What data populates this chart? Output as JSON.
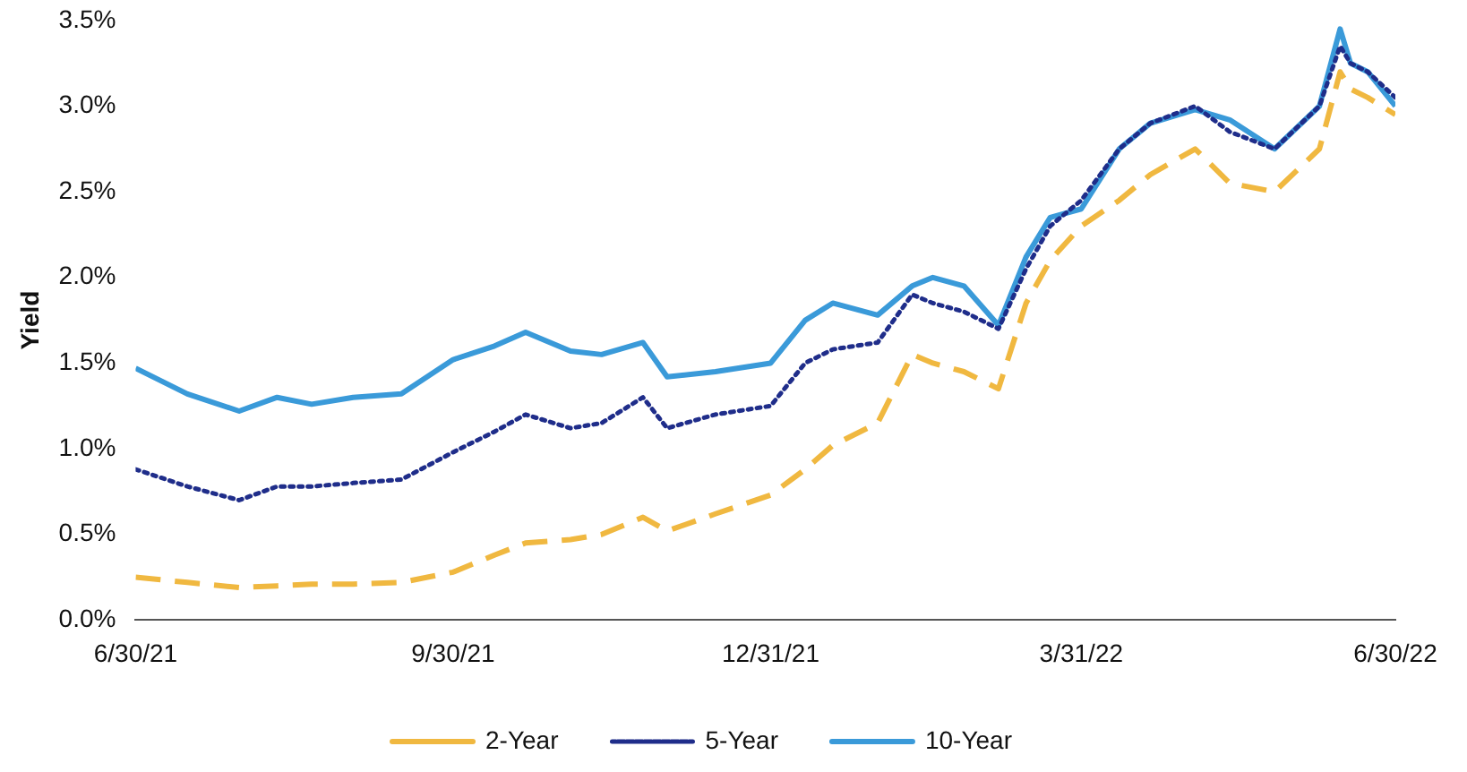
{
  "chart_data": {
    "type": "line",
    "ylabel": "Yield",
    "x": [
      "2021-06-30",
      "2021-07-15",
      "2021-07-30",
      "2021-08-10",
      "2021-08-20",
      "2021-09-01",
      "2021-09-15",
      "2021-09-30",
      "2021-10-12",
      "2021-10-21",
      "2021-11-03",
      "2021-11-12",
      "2021-11-24",
      "2021-12-01",
      "2021-12-15",
      "2021-12-31",
      "2022-01-10",
      "2022-01-18",
      "2022-01-31",
      "2022-02-10",
      "2022-02-16",
      "2022-02-25",
      "2022-03-07",
      "2022-03-15",
      "2022-03-22",
      "2022-03-31",
      "2022-04-11",
      "2022-04-20",
      "2022-05-03",
      "2022-05-13",
      "2022-05-26",
      "2022-06-08",
      "2022-06-14",
      "2022-06-17",
      "2022-06-22",
      "2022-06-30"
    ],
    "series": [
      {
        "name": "2-Year",
        "color": "#f0b840",
        "line_style": "dashed",
        "values": [
          0.25,
          0.22,
          0.19,
          0.2,
          0.21,
          0.21,
          0.22,
          0.28,
          0.38,
          0.45,
          0.47,
          0.5,
          0.6,
          0.52,
          0.62,
          0.73,
          0.88,
          1.02,
          1.15,
          1.55,
          1.5,
          1.45,
          1.35,
          1.85,
          2.1,
          2.3,
          2.45,
          2.6,
          2.75,
          2.55,
          2.5,
          2.75,
          3.2,
          3.1,
          3.05,
          2.95
        ]
      },
      {
        "name": "5-Year",
        "color": "#1f2d8a",
        "line_style": "dotted",
        "values": [
          0.88,
          0.78,
          0.7,
          0.78,
          0.78,
          0.8,
          0.82,
          0.98,
          1.1,
          1.2,
          1.12,
          1.15,
          1.3,
          1.12,
          1.2,
          1.25,
          1.5,
          1.58,
          1.62,
          1.9,
          1.85,
          1.8,
          1.7,
          2.05,
          2.3,
          2.45,
          2.75,
          2.9,
          3.0,
          2.85,
          2.75,
          3.0,
          3.35,
          3.25,
          3.2,
          3.05
        ]
      },
      {
        "name": "10-Year",
        "color": "#3a9ad9",
        "line_style": "solid",
        "values": [
          1.47,
          1.32,
          1.22,
          1.3,
          1.26,
          1.3,
          1.32,
          1.52,
          1.6,
          1.68,
          1.57,
          1.55,
          1.62,
          1.42,
          1.45,
          1.5,
          1.75,
          1.85,
          1.78,
          1.95,
          2.0,
          1.95,
          1.72,
          2.12,
          2.35,
          2.4,
          2.75,
          2.9,
          2.98,
          2.92,
          2.75,
          3.0,
          3.45,
          3.25,
          3.2,
          3.0
        ]
      }
    ],
    "xlim": [
      "2021-06-30",
      "2022-06-30"
    ],
    "xticks": [
      {
        "value": "2021-06-30",
        "label": "6/30/21"
      },
      {
        "value": "2021-09-30",
        "label": "9/30/21"
      },
      {
        "value": "2021-12-31",
        "label": "12/31/21"
      },
      {
        "value": "2022-03-31",
        "label": "3/31/22"
      },
      {
        "value": "2022-06-30",
        "label": "6/30/22"
      }
    ],
    "ylim": [
      0,
      3.5
    ],
    "yticks": [
      {
        "value": 0,
        "label": "0.0%"
      },
      {
        "value": 0.5,
        "label": "0.5%"
      },
      {
        "value": 1,
        "label": "1.0%"
      },
      {
        "value": 1.5,
        "label": "1.5%"
      },
      {
        "value": 2,
        "label": "2.0%"
      },
      {
        "value": 2.5,
        "label": "2.5%"
      },
      {
        "value": 3,
        "label": "3.0%"
      },
      {
        "value": 3.5,
        "label": "3.5%"
      }
    ],
    "grid": false,
    "legend": "bottom"
  }
}
